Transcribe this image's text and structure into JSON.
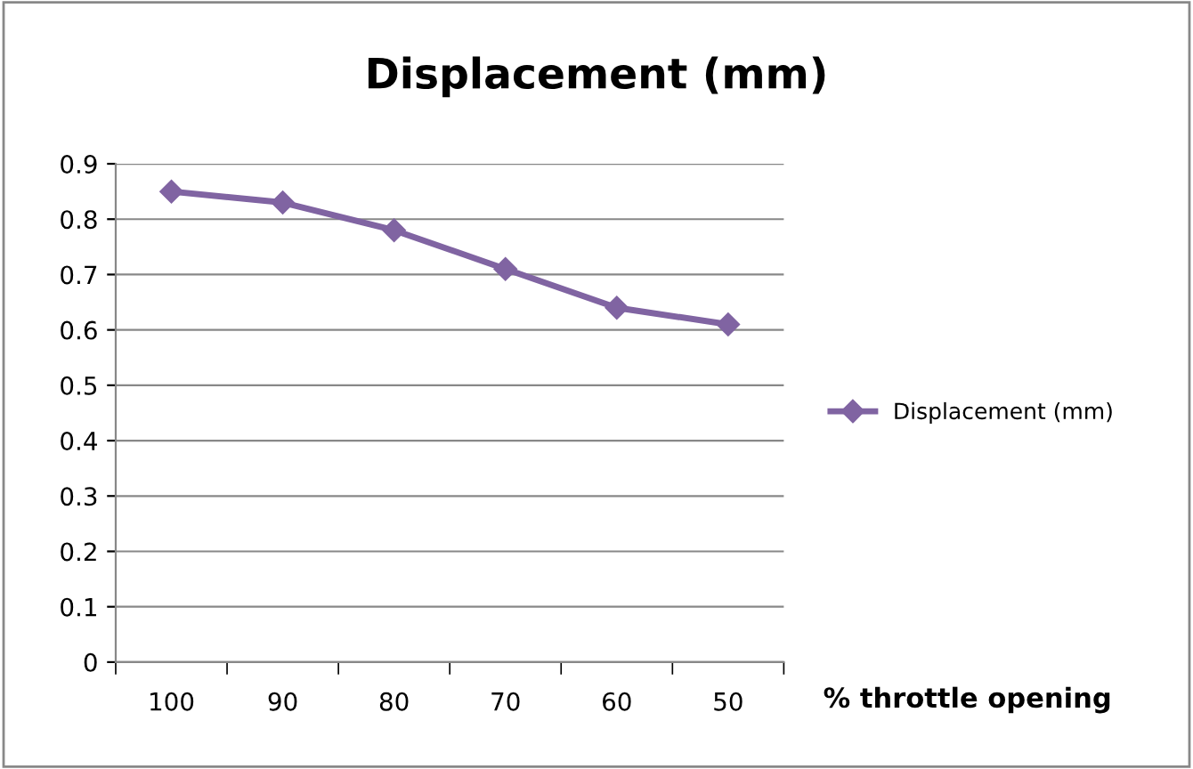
{
  "chart_data": {
    "type": "line",
    "title": "Displacement (mm)",
    "xlabel": "% throttle opening",
    "categories": [
      "100",
      "90",
      "80",
      "70",
      "60",
      "50"
    ],
    "series": [
      {
        "name": "Displacement (mm)",
        "color": "#8064a2",
        "values": [
          0.85,
          0.83,
          0.78,
          0.71,
          0.64,
          0.61
        ]
      }
    ],
    "ylim": [
      0,
      0.9
    ],
    "yticks": [
      0,
      0.1,
      0.2,
      0.3,
      0.4,
      0.5,
      0.6,
      0.7,
      0.8,
      0.9
    ],
    "grid": "y",
    "legend": "right",
    "marker": "diamond",
    "line_style": "solid"
  }
}
